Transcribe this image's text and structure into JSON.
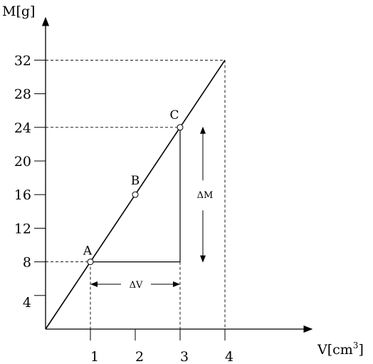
{
  "chart_data": {
    "type": "line",
    "xlabel": "V[cm",
    "xlabel_sup": "3",
    "xlabel_close": "]",
    "ylabel": "M[g]",
    "xlim": [
      0,
      4.8
    ],
    "ylim": [
      0,
      36
    ],
    "x_ticks": [
      "1",
      "2",
      "3",
      "4"
    ],
    "x_tick_values": [
      1,
      2,
      3,
      4
    ],
    "y_ticks": [
      "4",
      "8",
      "12",
      "16",
      "20",
      "24",
      "28",
      "32"
    ],
    "y_tick_values": [
      4,
      8,
      12,
      16,
      20,
      24,
      28,
      32
    ],
    "series": [
      {
        "x": [
          0,
          4
        ],
        "y": [
          0,
          32
        ]
      }
    ],
    "points": [
      {
        "label": "A",
        "x": 1,
        "y": 8
      },
      {
        "label": "B",
        "x": 2,
        "y": 16
      },
      {
        "label": "C",
        "x": 3,
        "y": 24
      }
    ],
    "guides": [
      {
        "x": 1,
        "y": 8
      },
      {
        "x": 3,
        "y": 24
      },
      {
        "x": 4,
        "y": 32
      }
    ],
    "annotations": {
      "delta_v": "ΔV",
      "delta_m": "ΔM"
    },
    "grid": false,
    "color": "#000000"
  }
}
